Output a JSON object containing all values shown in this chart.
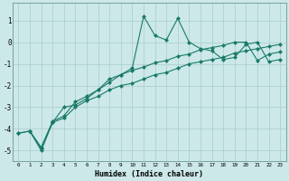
{
  "xlabel": "Humidex (Indice chaleur)",
  "background_color": "#cce8e8",
  "grid_color": "#aacccc",
  "line_color": "#1a7a6a",
  "markersize": 2.5,
  "linewidth": 0.8,
  "xlim": [
    -0.5,
    23.5
  ],
  "ylim": [
    -5.5,
    1.8
  ],
  "yticks": [
    -5,
    -4,
    -3,
    -2,
    -1,
    0,
    1
  ],
  "xticks": [
    0,
    1,
    2,
    3,
    4,
    5,
    6,
    7,
    8,
    9,
    10,
    11,
    12,
    13,
    14,
    15,
    16,
    17,
    18,
    19,
    20,
    21,
    22,
    23
  ],
  "series1_x": [
    0,
    1,
    2,
    3,
    4,
    5,
    6,
    7,
    8,
    9,
    10,
    11,
    12,
    13,
    14,
    15,
    16,
    17,
    18,
    19,
    20,
    21,
    22,
    23
  ],
  "series1_y": [
    -4.2,
    -4.1,
    -4.9,
    -3.7,
    -3.5,
    -3.0,
    -2.7,
    -2.5,
    -2.2,
    -2.0,
    -1.9,
    -1.7,
    -1.5,
    -1.4,
    -1.2,
    -1.0,
    -0.9,
    -0.8,
    -0.7,
    -0.5,
    -0.4,
    -0.3,
    -0.2,
    -0.1
  ],
  "series2_x": [
    0,
    1,
    2,
    3,
    4,
    5,
    6,
    7,
    8,
    9,
    10,
    11,
    12,
    13,
    14,
    15,
    16,
    17,
    18,
    19,
    20,
    21,
    22,
    23
  ],
  "series2_y": [
    -4.2,
    -4.1,
    -4.85,
    -3.65,
    -3.4,
    -2.75,
    -2.5,
    -2.2,
    -1.85,
    -1.5,
    -1.3,
    -1.15,
    -0.95,
    -0.85,
    -0.65,
    -0.55,
    -0.35,
    -0.25,
    -0.15,
    0.0,
    0.0,
    -0.85,
    -0.55,
    -0.45
  ],
  "series3_x": [
    1,
    2,
    3,
    4,
    5,
    6,
    7,
    8,
    9,
    10,
    11,
    12,
    13,
    14,
    15,
    16,
    17,
    18,
    19,
    20,
    21,
    22,
    23
  ],
  "series3_y": [
    -4.1,
    -5.0,
    -3.7,
    -3.0,
    -2.9,
    -2.6,
    -2.2,
    -1.7,
    -1.5,
    -1.2,
    1.2,
    0.3,
    0.1,
    1.1,
    0.0,
    -0.3,
    -0.4,
    -0.8,
    -0.7,
    -0.1,
    0.0,
    -0.9,
    -0.8
  ]
}
